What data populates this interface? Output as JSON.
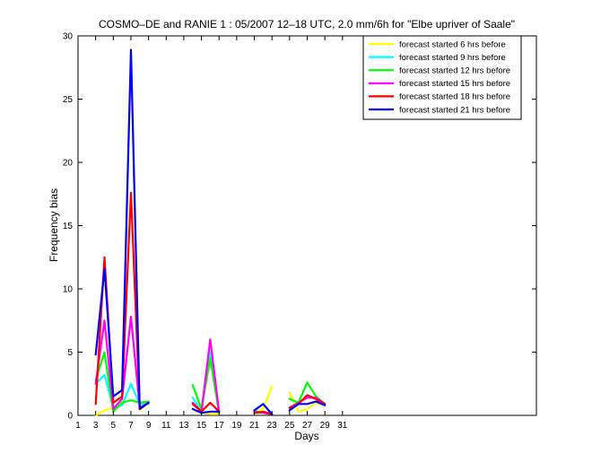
{
  "chart_data": {
    "type": "line",
    "title": "COSMO–DE and RANIE 1 : 05/2007 12–18 UTC, 2.0 mm/6h for \"Elbe upriver of Saale\"",
    "xlabel": "Days",
    "ylabel": "Frequency bias",
    "xlim": [
      1,
      53
    ],
    "ylim": [
      0,
      30
    ],
    "xticks": [
      1,
      3,
      5,
      7,
      9,
      11,
      13,
      15,
      17,
      19,
      21,
      23,
      25,
      27,
      29,
      31
    ],
    "yticks": [
      0,
      5,
      10,
      15,
      20,
      25,
      30
    ],
    "grid": false,
    "legend_position": "top-right",
    "series": [
      {
        "name": "forecast started 6 hrs before",
        "color": "#ffff00",
        "points": [
          [
            3,
            0
          ],
          [
            4,
            0.4
          ],
          [
            5,
            0.6
          ],
          [
            6,
            1.2
          ],
          [
            7,
            28.5
          ],
          [
            8,
            0.4
          ],
          [
            9,
            1.0
          ],
          [
            null,
            null
          ],
          [
            14,
            1.4
          ],
          [
            15,
            0.3
          ],
          [
            16,
            0.1
          ],
          [
            17,
            0.1
          ],
          [
            null,
            null
          ],
          [
            21,
            0.3
          ],
          [
            22,
            0.5
          ],
          [
            23,
            2.3
          ],
          [
            null,
            null
          ],
          [
            25,
            1.8
          ],
          [
            26,
            0.3
          ],
          [
            27,
            0.5
          ],
          [
            28,
            1.0
          ],
          [
            29,
            0.8
          ]
        ]
      },
      {
        "name": "forecast started 9 hrs before",
        "color": "#00ffff",
        "points": [
          [
            3,
            2.5
          ],
          [
            4,
            3.2
          ],
          [
            5,
            0.6
          ],
          [
            6,
            0.8
          ],
          [
            7,
            2.5
          ],
          [
            8,
            0.9
          ],
          [
            9,
            0.9
          ],
          [
            null,
            null
          ],
          [
            14,
            1.4
          ],
          [
            15,
            0.3
          ],
          [
            16,
            5.0
          ],
          [
            17,
            0.3
          ],
          [
            null,
            null
          ],
          [
            21,
            0.4
          ],
          [
            22,
            0.2
          ],
          [
            23,
            0.1
          ],
          [
            null,
            null
          ],
          [
            25,
            0.5
          ],
          [
            26,
            1.0
          ],
          [
            27,
            1.5
          ],
          [
            28,
            1.3
          ],
          [
            29,
            0.9
          ]
        ]
      },
      {
        "name": "forecast started 12 hrs before",
        "color": "#00ff00",
        "points": [
          [
            3,
            2.8
          ],
          [
            4,
            5.0
          ],
          [
            5,
            0.3
          ],
          [
            6,
            1.0
          ],
          [
            7,
            1.2
          ],
          [
            8,
            1.0
          ],
          [
            9,
            1.1
          ],
          [
            null,
            null
          ],
          [
            14,
            2.4
          ],
          [
            15,
            0.5
          ],
          [
            16,
            4.5
          ],
          [
            17,
            0.2
          ],
          [
            null,
            null
          ],
          [
            21,
            0.2
          ],
          [
            22,
            0.2
          ],
          [
            23,
            0.1
          ],
          [
            null,
            null
          ],
          [
            25,
            1.3
          ],
          [
            26,
            1.0
          ],
          [
            27,
            2.6
          ],
          [
            28,
            1.5
          ],
          [
            29,
            0.9
          ]
        ]
      },
      {
        "name": "forecast started 15 hrs before",
        "color": "#ff00ff",
        "points": [
          [
            3,
            2.5
          ],
          [
            4,
            7.5
          ],
          [
            5,
            0.5
          ],
          [
            6,
            1.3
          ],
          [
            7,
            7.8
          ],
          [
            8,
            0.6
          ],
          [
            9,
            1.0
          ],
          [
            null,
            null
          ],
          [
            14,
            1.0
          ],
          [
            15,
            0.3
          ],
          [
            16,
            6.0
          ],
          [
            17,
            0.3
          ],
          [
            null,
            null
          ],
          [
            21,
            0.3
          ],
          [
            22,
            0.2
          ],
          [
            23,
            0.1
          ],
          [
            null,
            null
          ],
          [
            25,
            0.6
          ],
          [
            26,
            1.0
          ],
          [
            27,
            1.4
          ],
          [
            28,
            1.4
          ],
          [
            29,
            0.9
          ]
        ]
      },
      {
        "name": "forecast started 18 hrs before",
        "color": "#ff0000",
        "points": [
          [
            3,
            0.9
          ],
          [
            4,
            12.5
          ],
          [
            5,
            1.0
          ],
          [
            6,
            1.5
          ],
          [
            7,
            17.6
          ],
          [
            8,
            0.5
          ],
          [
            9,
            1.0
          ],
          [
            null,
            null
          ],
          [
            14,
            0.9
          ],
          [
            15,
            0.3
          ],
          [
            16,
            1.0
          ],
          [
            17,
            0.3
          ],
          [
            null,
            null
          ],
          [
            21,
            0.2
          ],
          [
            22,
            0.3
          ],
          [
            23,
            0.1
          ],
          [
            null,
            null
          ],
          [
            25,
            0.6
          ],
          [
            26,
            0.9
          ],
          [
            27,
            1.6
          ],
          [
            28,
            1.3
          ],
          [
            29,
            0.9
          ]
        ]
      },
      {
        "name": "forecast started 21 hrs before",
        "color": "#0000ff",
        "points": [
          [
            3,
            4.8
          ],
          [
            4,
            11.6
          ],
          [
            5,
            1.5
          ],
          [
            6,
            2.0
          ],
          [
            7,
            28.9
          ],
          [
            8,
            0.5
          ],
          [
            9,
            1.0
          ],
          [
            null,
            null
          ],
          [
            14,
            0.5
          ],
          [
            15,
            0.2
          ],
          [
            16,
            0.3
          ],
          [
            17,
            0.3
          ],
          [
            null,
            null
          ],
          [
            21,
            0.4
          ],
          [
            22,
            0.9
          ],
          [
            23,
            0.1
          ],
          [
            null,
            null
          ],
          [
            25,
            0.4
          ],
          [
            26,
            0.9
          ],
          [
            27,
            0.9
          ],
          [
            28,
            1.1
          ],
          [
            29,
            0.8
          ]
        ]
      }
    ]
  }
}
